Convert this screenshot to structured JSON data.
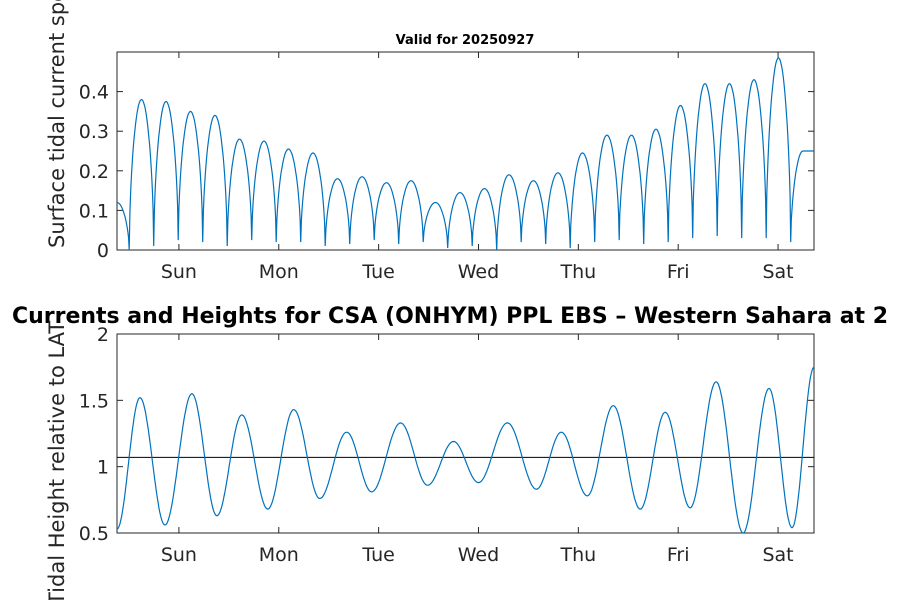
{
  "chart_data": [
    {
      "type": "line",
      "title": "Valid for 20250927",
      "ylabel": "Surface tidal current speed, knots",
      "ylabel_display": "Surface tidal current speed, kn",
      "ylim": [
        0,
        0.5
      ],
      "yticks": [
        0,
        0.1,
        0.2,
        0.3,
        0.4
      ],
      "ytick_labels": [
        "0",
        "0.1",
        "0.2",
        "0.3",
        "0.4"
      ],
      "xticks": [
        1,
        2,
        3,
        4,
        5,
        6,
        7
      ],
      "xtick_labels": [
        "Sun",
        "Mon",
        "Tue",
        "Wed",
        "Thu",
        "Fri",
        "Sat"
      ],
      "xlim": [
        0.38,
        7.36
      ],
      "series_color": "#0072BD",
      "peaks": [
        0.12,
        0.38,
        0.375,
        0.35,
        0.34,
        0.28,
        0.275,
        0.255,
        0.245,
        0.18,
        0.185,
        0.17,
        0.175,
        0.12,
        0.145,
        0.155,
        0.19,
        0.175,
        0.195,
        0.245,
        0.29,
        0.29,
        0.305,
        0.365,
        0.42,
        0.42,
        0.43,
        0.485,
        0.25
      ],
      "troughs": [
        0.0,
        0.01,
        0.025,
        0.02,
        0.01,
        0.025,
        0.02,
        0.02,
        0.01,
        0.015,
        0.025,
        0.015,
        0.02,
        0.005,
        0.01,
        0.0,
        0.02,
        0.015,
        0.005,
        0.02,
        0.025,
        0.015,
        0.02,
        0.03,
        0.035,
        0.03,
        0.03,
        0.02
      ]
    },
    {
      "type": "line",
      "title": "Currents and Heights for CSA (ONHYM) PPL EBS  – Western Sahara at 2",
      "ylabel": "Tidal Height relative to LAT, m",
      "ylabel_display": "Tidal Height relative to LAT",
      "ylim": [
        0.5,
        2
      ],
      "yticks": [
        0.5,
        1,
        1.5,
        2
      ],
      "ytick_labels": [
        "0.5",
        "1",
        "1.5",
        "2"
      ],
      "xticks": [
        1,
        2,
        3,
        4,
        5,
        6,
        7
      ],
      "xtick_labels": [
        "Sun",
        "Mon",
        "Tue",
        "Wed",
        "Thu",
        "Fri",
        "Sat"
      ],
      "xlim": [
        0.38,
        7.36
      ],
      "mean_level": 1.07,
      "series_color": "#0072BD",
      "reference_color": "#000000",
      "extrema": [
        [
          0.38,
          0.53
        ],
        [
          0.61,
          1.52
        ],
        [
          0.86,
          0.56
        ],
        [
          1.13,
          1.55
        ],
        [
          1.38,
          0.63
        ],
        [
          1.63,
          1.39
        ],
        [
          1.89,
          0.68
        ],
        [
          2.15,
          1.43
        ],
        [
          2.41,
          0.76
        ],
        [
          2.68,
          1.26
        ],
        [
          2.93,
          0.81
        ],
        [
          3.22,
          1.33
        ],
        [
          3.49,
          0.86
        ],
        [
          3.75,
          1.19
        ],
        [
          4.0,
          0.88
        ],
        [
          4.29,
          1.33
        ],
        [
          4.58,
          0.83
        ],
        [
          4.83,
          1.26
        ],
        [
          5.09,
          0.78
        ],
        [
          5.35,
          1.46
        ],
        [
          5.62,
          0.68
        ],
        [
          5.87,
          1.41
        ],
        [
          6.12,
          0.69
        ],
        [
          6.38,
          1.64
        ],
        [
          6.65,
          0.5
        ],
        [
          6.91,
          1.59
        ],
        [
          7.14,
          0.54
        ],
        [
          7.36,
          1.75
        ]
      ]
    }
  ]
}
